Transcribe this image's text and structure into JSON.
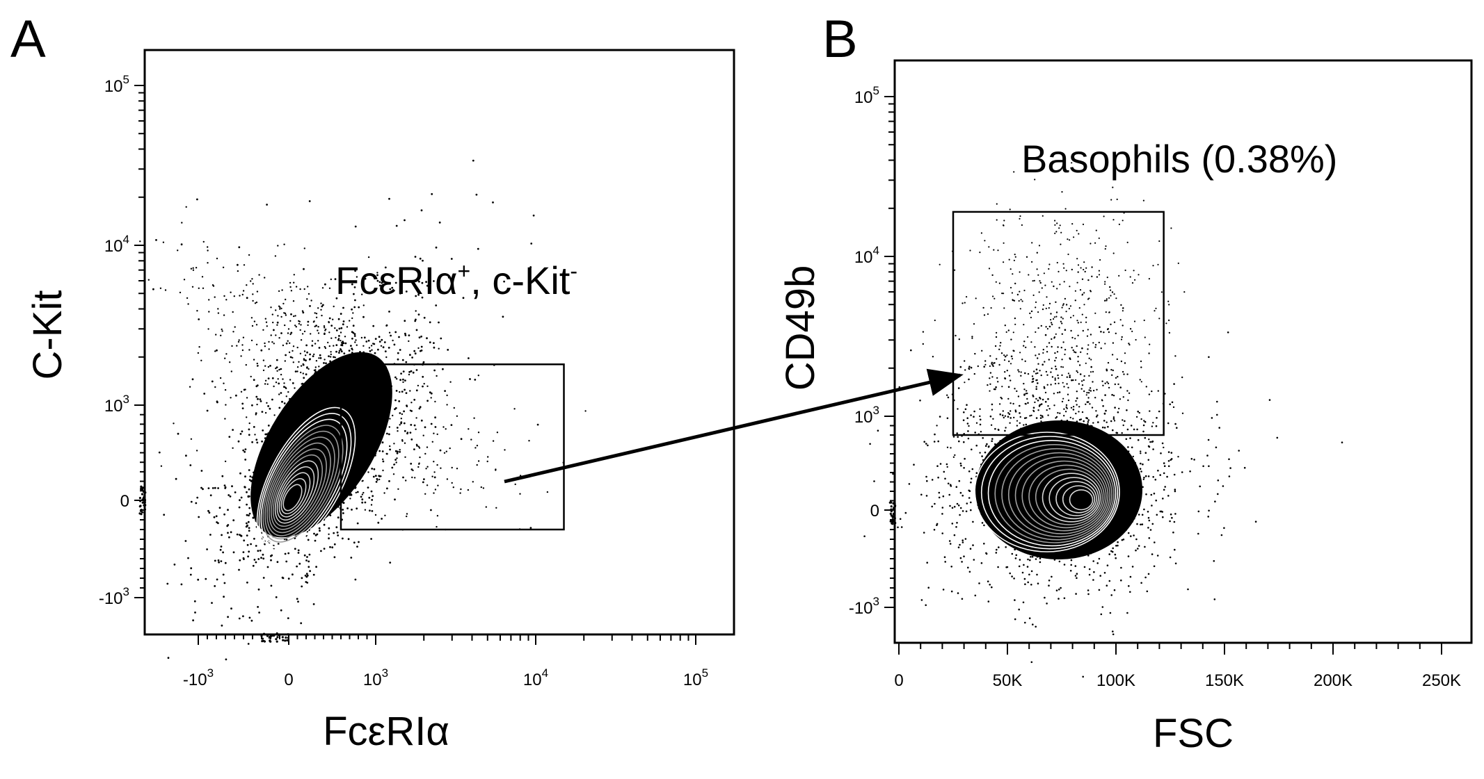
{
  "chart_data": [
    {
      "type": "scatter",
      "panel_label": "A",
      "xlabel": "FcεRIα",
      "ylabel": "C-Kit",
      "xscale": "biexponential",
      "yscale": "biexponential",
      "xticks": [
        {
          "base": "-10",
          "exp": "3"
        },
        {
          "base": "0",
          "exp": ""
        },
        {
          "base": "10",
          "exp": "3"
        },
        {
          "base": "10",
          "exp": "4"
        },
        {
          "base": "10",
          "exp": "5"
        }
      ],
      "yticks": [
        {
          "base": "10",
          "exp": "5"
        },
        {
          "base": "10",
          "exp": "4"
        },
        {
          "base": "10",
          "exp": "3"
        },
        {
          "base": "0",
          "exp": ""
        },
        {
          "base": "-10",
          "exp": "3"
        }
      ],
      "gate": {
        "label_main": "FcεRIα",
        "label_sup1": "+",
        "label_mid": ", c-Kit",
        "label_sup2": "-",
        "x_range": [
          600,
          15000
        ],
        "y_range": [
          -300,
          1800
        ]
      }
    },
    {
      "type": "scatter",
      "panel_label": "B",
      "xlabel": "FSC",
      "ylabel": "CD49b",
      "xscale": "linear",
      "yscale": "biexponential",
      "xticks": [
        "0",
        "50K",
        "100K",
        "150K",
        "200K",
        "250K"
      ],
      "yticks": [
        {
          "base": "10",
          "exp": "5"
        },
        {
          "base": "10",
          "exp": "4"
        },
        {
          "base": "10",
          "exp": "3"
        },
        {
          "base": "0",
          "exp": ""
        },
        {
          "base": "-10",
          "exp": "3"
        }
      ],
      "gate": {
        "label": "Basophils (0.38%)",
        "population_percent": 0.38,
        "x_range": [
          25000,
          122000
        ],
        "y_range": [
          800,
          19000
        ]
      }
    }
  ]
}
